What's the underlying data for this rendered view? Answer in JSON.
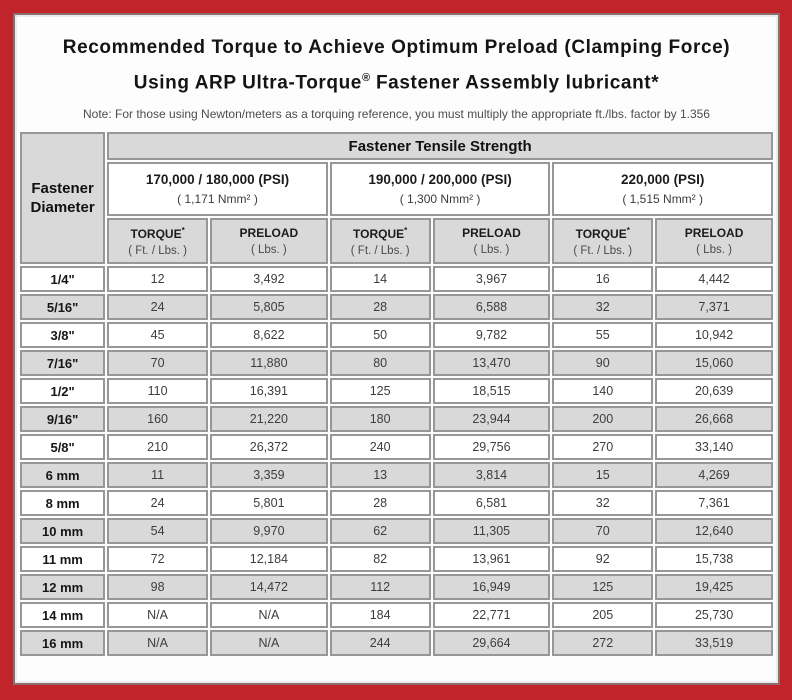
{
  "header": {
    "title_line1": "Recommended Torque to Achieve Optimum Preload (Clamping Force)",
    "title_line2_pre": "Using ARP Ultra-Torque",
    "title_reg": "®",
    "title_line2_post": " Fastener Assembly lubricant*",
    "note": "Note: For those using Newton/meters as a torquing reference, you must multiply the appropriate ft./lbs. factor by 1.356"
  },
  "table": {
    "corner_line1": "Fastener",
    "corner_line2": "Diameter",
    "tensile_header": "Fastener Tensile Strength",
    "groups": [
      {
        "psi": "170,000 / 180,000 (PSI)",
        "nmm": "( 1,171 Nmm² )"
      },
      {
        "psi": "190,000 / 200,000 (PSI)",
        "nmm": "( 1,300 Nmm² )"
      },
      {
        "psi": "220,000 (PSI)",
        "nmm": "( 1,515 Nmm² )"
      }
    ],
    "col_headers": {
      "torque_label": "TORQUE",
      "torque_sup": "*",
      "torque_unit": "( Ft. / Lbs. )",
      "preload_label": "PRELOAD",
      "preload_unit": "( Lbs. )"
    },
    "rows": [
      {
        "diameter": "1/4\"",
        "values": [
          "12",
          "3,492",
          "14",
          "3,967",
          "16",
          "4,442"
        ]
      },
      {
        "diameter": "5/16\"",
        "values": [
          "24",
          "5,805",
          "28",
          "6,588",
          "32",
          "7,371"
        ]
      },
      {
        "diameter": "3/8\"",
        "values": [
          "45",
          "8,622",
          "50",
          "9,782",
          "55",
          "10,942"
        ]
      },
      {
        "diameter": "7/16\"",
        "values": [
          "70",
          "11,880",
          "80",
          "13,470",
          "90",
          "15,060"
        ]
      },
      {
        "diameter": "1/2\"",
        "values": [
          "110",
          "16,391",
          "125",
          "18,515",
          "140",
          "20,639"
        ]
      },
      {
        "diameter": "9/16\"",
        "values": [
          "160",
          "21,220",
          "180",
          "23,944",
          "200",
          "26,668"
        ]
      },
      {
        "diameter": "5/8\"",
        "values": [
          "210",
          "26,372",
          "240",
          "29,756",
          "270",
          "33,140"
        ]
      },
      {
        "diameter": "6 mm",
        "values": [
          "11",
          "3,359",
          "13",
          "3,814",
          "15",
          "4,269"
        ]
      },
      {
        "diameter": "8 mm",
        "values": [
          "24",
          "5,801",
          "28",
          "6,581",
          "32",
          "7,361"
        ]
      },
      {
        "diameter": "10 mm",
        "values": [
          "54",
          "9,970",
          "62",
          "11,305",
          "70",
          "12,640"
        ]
      },
      {
        "diameter": "11 mm",
        "values": [
          "72",
          "12,184",
          "82",
          "13,961",
          "92",
          "15,738"
        ]
      },
      {
        "diameter": "12 mm",
        "values": [
          "98",
          "14,472",
          "112",
          "16,949",
          "125",
          "19,425"
        ]
      },
      {
        "diameter": "14 mm",
        "values": [
          "N/A",
          "N/A",
          "184",
          "22,771",
          "205",
          "25,730"
        ]
      },
      {
        "diameter": "16 mm",
        "values": [
          "N/A",
          "N/A",
          "244",
          "29,664",
          "272",
          "33,519"
        ]
      }
    ]
  },
  "colors": {
    "frame_red": "#c2242b",
    "cell_gray": "#d9d9d9",
    "cell_border_gray": "#979797",
    "inner_border_maroon": "#8d6e6e"
  }
}
